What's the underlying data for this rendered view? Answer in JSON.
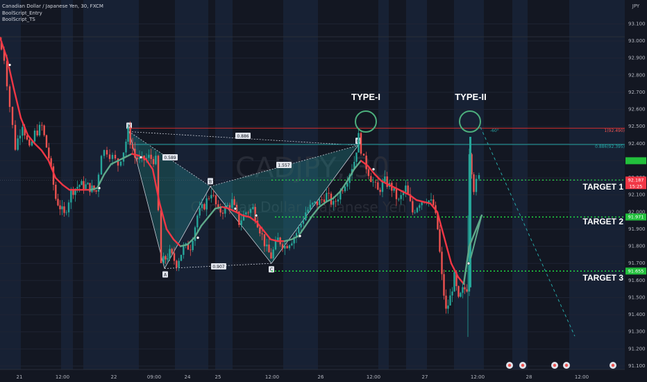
{
  "header": {
    "title": "Canadian Dollar / Japanese Yen, 30, FXCM",
    "indicators": [
      "BoolScript_Entry",
      "BoolScript_TS"
    ]
  },
  "watermark": {
    "symbol": "CADJPY, 30",
    "name": "Canadian Dollar / Japanese Yen"
  },
  "price_axis": {
    "currency": "JPY",
    "ticks": [
      "93.100",
      "93.000",
      "92.900",
      "92.800",
      "92.700",
      "92.600",
      "92.500",
      "92.400",
      "92.300",
      "92.200",
      "92.100",
      "92.000",
      "91.900",
      "91.800",
      "91.700",
      "91.600",
      "91.500",
      "91.400",
      "91.300",
      "91.200",
      "91.100"
    ],
    "current_price": "92.187",
    "countdown": "15:25",
    "level_labels": [
      "92.187",
      "91.971",
      "91.655"
    ]
  },
  "time_axis": {
    "labels": [
      "21",
      "12:00",
      "22",
      "09:00",
      "24",
      "25",
      "12:00",
      "26",
      "12:00",
      "27",
      "12:00",
      "28",
      "12:00"
    ]
  },
  "annotations": {
    "type1": "TYPE-I",
    "type2": "TYPE-II",
    "target1": "TARGET 1",
    "target2": "TARGET 2",
    "target3": "TARGET 3",
    "level_1": "1(92.490)",
    "level_0886": "0.886(92.395)",
    "angle": "-60°"
  },
  "pattern": {
    "points": [
      "X",
      "A",
      "B",
      "C",
      "D"
    ],
    "ratios": {
      "xab": "0.589",
      "xad": "0.886",
      "abc": "0.907",
      "bcd": "1.557"
    }
  },
  "colors": {
    "bg": "#131722",
    "bull": "#26a69a",
    "bear": "#ef5350",
    "ema": "#f23645",
    "target": "#22ee44",
    "fib": "#26a6a6",
    "resistance": "#d32f2f",
    "circle": "#4caf7d"
  },
  "chart_data": {
    "type": "candlestick",
    "symbol": "CADJPY",
    "timeframe": "30",
    "ylim": [
      91.05,
      93.17
    ],
    "ohlc_close_path": [
      [
        0,
        93.0
      ],
      [
        8,
        92.9
      ],
      [
        16,
        92.62
      ],
      [
        24,
        92.38
      ],
      [
        34,
        92.52
      ],
      [
        44,
        92.36
      ],
      [
        52,
        92.46
      ],
      [
        62,
        92.5
      ],
      [
        72,
        92.32
      ],
      [
        82,
        92.08
      ],
      [
        94,
        91.98
      ],
      [
        104,
        92.12
      ],
      [
        116,
        92.16
      ],
      [
        128,
        92.15
      ],
      [
        140,
        92.12
      ],
      [
        148,
        92.35
      ],
      [
        156,
        92.36
      ],
      [
        164,
        92.32
      ],
      [
        172,
        92.28
      ],
      [
        180,
        92.36
      ],
      [
        186,
        92.47
      ],
      [
        196,
        92.32
      ],
      [
        206,
        92.3
      ],
      [
        216,
        92.32
      ],
      [
        226,
        92.3
      ],
      [
        234,
        91.7
      ],
      [
        246,
        91.76
      ],
      [
        256,
        91.7
      ],
      [
        266,
        91.79
      ],
      [
        276,
        91.8
      ],
      [
        286,
        91.98
      ],
      [
        296,
        92.04
      ],
      [
        306,
        92.12
      ],
      [
        316,
        92.0
      ],
      [
        326,
        92.02
      ],
      [
        336,
        92.06
      ],
      [
        346,
        91.94
      ],
      [
        356,
        92.0
      ],
      [
        366,
        92.02
      ],
      [
        376,
        91.9
      ],
      [
        386,
        91.78
      ],
      [
        392,
        91.74
      ],
      [
        402,
        91.84
      ],
      [
        412,
        91.8
      ],
      [
        422,
        91.84
      ],
      [
        432,
        91.9
      ],
      [
        442,
        92.0
      ],
      [
        452,
        92.04
      ],
      [
        462,
        92.06
      ],
      [
        472,
        92.1
      ],
      [
        482,
        92.04
      ],
      [
        492,
        92.12
      ],
      [
        502,
        92.2
      ],
      [
        512,
        92.3
      ],
      [
        518,
        92.44
      ],
      [
        526,
        92.3
      ],
      [
        536,
        92.2
      ],
      [
        546,
        92.12
      ],
      [
        556,
        92.18
      ],
      [
        566,
        92.14
      ],
      [
        576,
        92.06
      ],
      [
        586,
        92.14
      ],
      [
        596,
        92.0
      ],
      [
        606,
        92.06
      ],
      [
        616,
        92.08
      ],
      [
        626,
        92.04
      ],
      [
        632,
        91.9
      ],
      [
        638,
        91.62
      ],
      [
        644,
        91.42
      ],
      [
        650,
        91.5
      ],
      [
        656,
        91.62
      ],
      [
        662,
        91.48
      ],
      [
        668,
        91.54
      ],
      [
        674,
        91.56
      ],
      [
        678,
        92.36
      ],
      [
        684,
        92.14
      ],
      [
        692,
        92.2
      ]
    ],
    "ema_path": [
      [
        0,
        93.02
      ],
      [
        10,
        92.9
      ],
      [
        20,
        92.72
      ],
      [
        30,
        92.55
      ],
      [
        40,
        92.45
      ],
      [
        50,
        92.4
      ],
      [
        60,
        92.36
      ],
      [
        70,
        92.3
      ],
      [
        80,
        92.2
      ],
      [
        90,
        92.16
      ],
      [
        100,
        92.13
      ],
      [
        110,
        92.13
      ],
      [
        120,
        92.13
      ],
      [
        130,
        92.13
      ],
      [
        140,
        92.14
      ],
      [
        150,
        92.22
      ],
      [
        160,
        92.28
      ],
      [
        170,
        92.3
      ],
      [
        180,
        92.32
      ],
      [
        190,
        92.34
      ],
      [
        200,
        92.33
      ],
      [
        210,
        92.31
      ],
      [
        220,
        92.25
      ],
      [
        230,
        92.05
      ],
      [
        240,
        91.9
      ],
      [
        250,
        91.84
      ],
      [
        260,
        91.8
      ],
      [
        270,
        91.81
      ],
      [
        280,
        91.85
      ],
      [
        290,
        91.92
      ],
      [
        300,
        91.97
      ],
      [
        310,
        92.02
      ],
      [
        320,
        92.03
      ],
      [
        330,
        92.02
      ],
      [
        340,
        92.0
      ],
      [
        350,
        91.98
      ],
      [
        360,
        91.97
      ],
      [
        370,
        91.94
      ],
      [
        380,
        91.89
      ],
      [
        390,
        91.84
      ],
      [
        400,
        91.83
      ],
      [
        410,
        91.83
      ],
      [
        420,
        91.84
      ],
      [
        430,
        91.86
      ],
      [
        440,
        91.92
      ],
      [
        450,
        91.98
      ],
      [
        460,
        92.03
      ],
      [
        470,
        92.06
      ],
      [
        480,
        92.08
      ],
      [
        490,
        92.12
      ],
      [
        500,
        92.18
      ],
      [
        510,
        92.25
      ],
      [
        520,
        92.3
      ],
      [
        530,
        92.27
      ],
      [
        540,
        92.22
      ],
      [
        550,
        92.18
      ],
      [
        560,
        92.16
      ],
      [
        570,
        92.14
      ],
      [
        580,
        92.12
      ],
      [
        590,
        92.1
      ],
      [
        600,
        92.07
      ],
      [
        610,
        92.06
      ],
      [
        620,
        92.05
      ],
      [
        630,
        92.0
      ],
      [
        640,
        91.85
      ],
      [
        650,
        91.7
      ],
      [
        660,
        91.62
      ],
      [
        668,
        91.58
      ],
      [
        676,
        91.8
      ],
      [
        686,
        91.9
      ],
      [
        694,
        91.98
      ]
    ],
    "pattern_points": {
      "X": 92.47,
      "A": 91.67,
      "B": 92.15,
      "C": 91.7,
      "D": 92.39
    },
    "levels": {
      "resistance": 92.49,
      "fib_0886": 92.395,
      "target1": 92.187,
      "target2": 91.971,
      "target3": 91.655
    }
  }
}
